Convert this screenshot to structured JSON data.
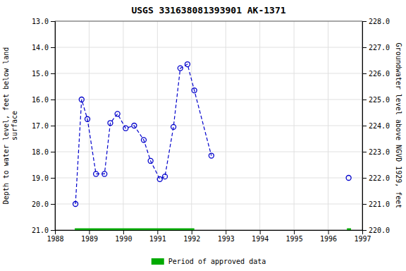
{
  "chart_data": {
    "type": "line",
    "title": "USGS 331638081393901 AK-1371",
    "y_label": "Depth to water level, feet below land\nsurface",
    "y2_label": "Groundwater level above NGVD 1929, feet",
    "xlim": [
      1988,
      1997
    ],
    "xticks": [
      1988,
      1989,
      1990,
      1991,
      1992,
      1993,
      1994,
      1995,
      1996,
      1997
    ],
    "ylim": [
      21.0,
      13.0
    ],
    "yticks": [
      {
        "value": 13.0,
        "label": "13.0"
      },
      {
        "value": 14.0,
        "label": "14.0"
      },
      {
        "value": 15.0,
        "label": "15.0"
      },
      {
        "value": 16.0,
        "label": "16.0"
      },
      {
        "value": 17.0,
        "label": "17.0"
      },
      {
        "value": 18.0,
        "label": "18.0"
      },
      {
        "value": 19.0,
        "label": "19.0"
      },
      {
        "value": 20.0,
        "label": "20.0"
      },
      {
        "value": 21.0,
        "label": "21.0"
      }
    ],
    "y2lim": [
      220.0,
      228.0
    ],
    "y2ticks": [
      {
        "value": 220.0,
        "label": "220.0"
      },
      {
        "value": 221.0,
        "label": "221.0"
      },
      {
        "value": 222.0,
        "label": "222.0"
      },
      {
        "value": 223.0,
        "label": "223.0"
      },
      {
        "value": 224.0,
        "label": "224.0"
      },
      {
        "value": 225.0,
        "label": "225.0"
      },
      {
        "value": 226.0,
        "label": "226.0"
      },
      {
        "value": 227.0,
        "label": "227.0"
      },
      {
        "value": 228.0,
        "label": "228.0"
      }
    ],
    "grid": true,
    "legend": "bottom",
    "series": [
      {
        "x": [
          1988.6,
          1988.78,
          1988.95,
          1989.2,
          1989.45,
          1989.62,
          1989.83,
          1990.07,
          1990.32,
          1990.6,
          1990.8,
          1991.07,
          1991.22,
          1991.47,
          1991.67,
          1991.88,
          1992.08,
          1992.58
        ],
        "values": [
          20.0,
          16.0,
          16.75,
          18.85,
          18.85,
          16.9,
          16.55,
          17.1,
          17.0,
          17.55,
          18.35,
          19.05,
          18.95,
          17.05,
          14.8,
          14.65,
          15.65,
          18.15
        ],
        "color": "#0000cc",
        "marker": "circle-open",
        "line_style": "dashed"
      },
      {
        "x": [
          1996.6
        ],
        "values": [
          19.0
        ],
        "color": "#0000cc",
        "marker": "circle-open",
        "line_style": "dashed"
      },
      {
        "name": "Period of approved data",
        "type": "span",
        "color": "#00aa00",
        "values": [
          21.0,
          21.0
        ],
        "x_start": [
          1988.58,
          1996.55
        ],
        "x_end": [
          1992.08,
          1996.67
        ]
      }
    ]
  }
}
